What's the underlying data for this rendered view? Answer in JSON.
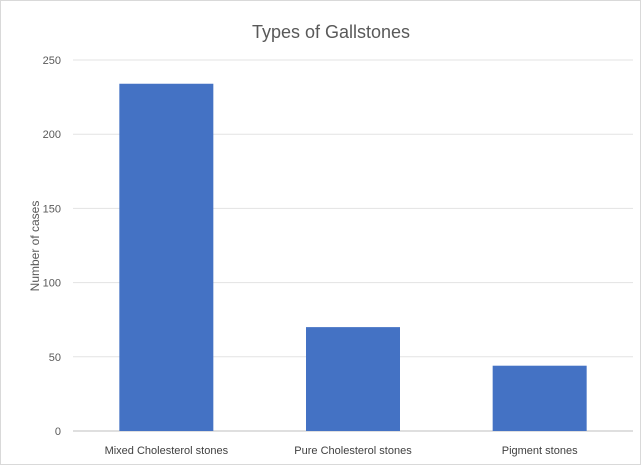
{
  "chart_data": {
    "type": "bar",
    "title": "Types of Gallstones",
    "xlabel": "",
    "ylabel": "Number of cases",
    "categories": [
      "Mixed Cholesterol stones",
      "Pure Cholesterol stones",
      "Pigment stones"
    ],
    "values": [
      234,
      70,
      44
    ],
    "ylim": [
      0,
      250
    ],
    "yticks": [
      0,
      50,
      100,
      150,
      200,
      250
    ],
    "grid": true,
    "legend": "none",
    "bar_color": "#4472c4"
  }
}
